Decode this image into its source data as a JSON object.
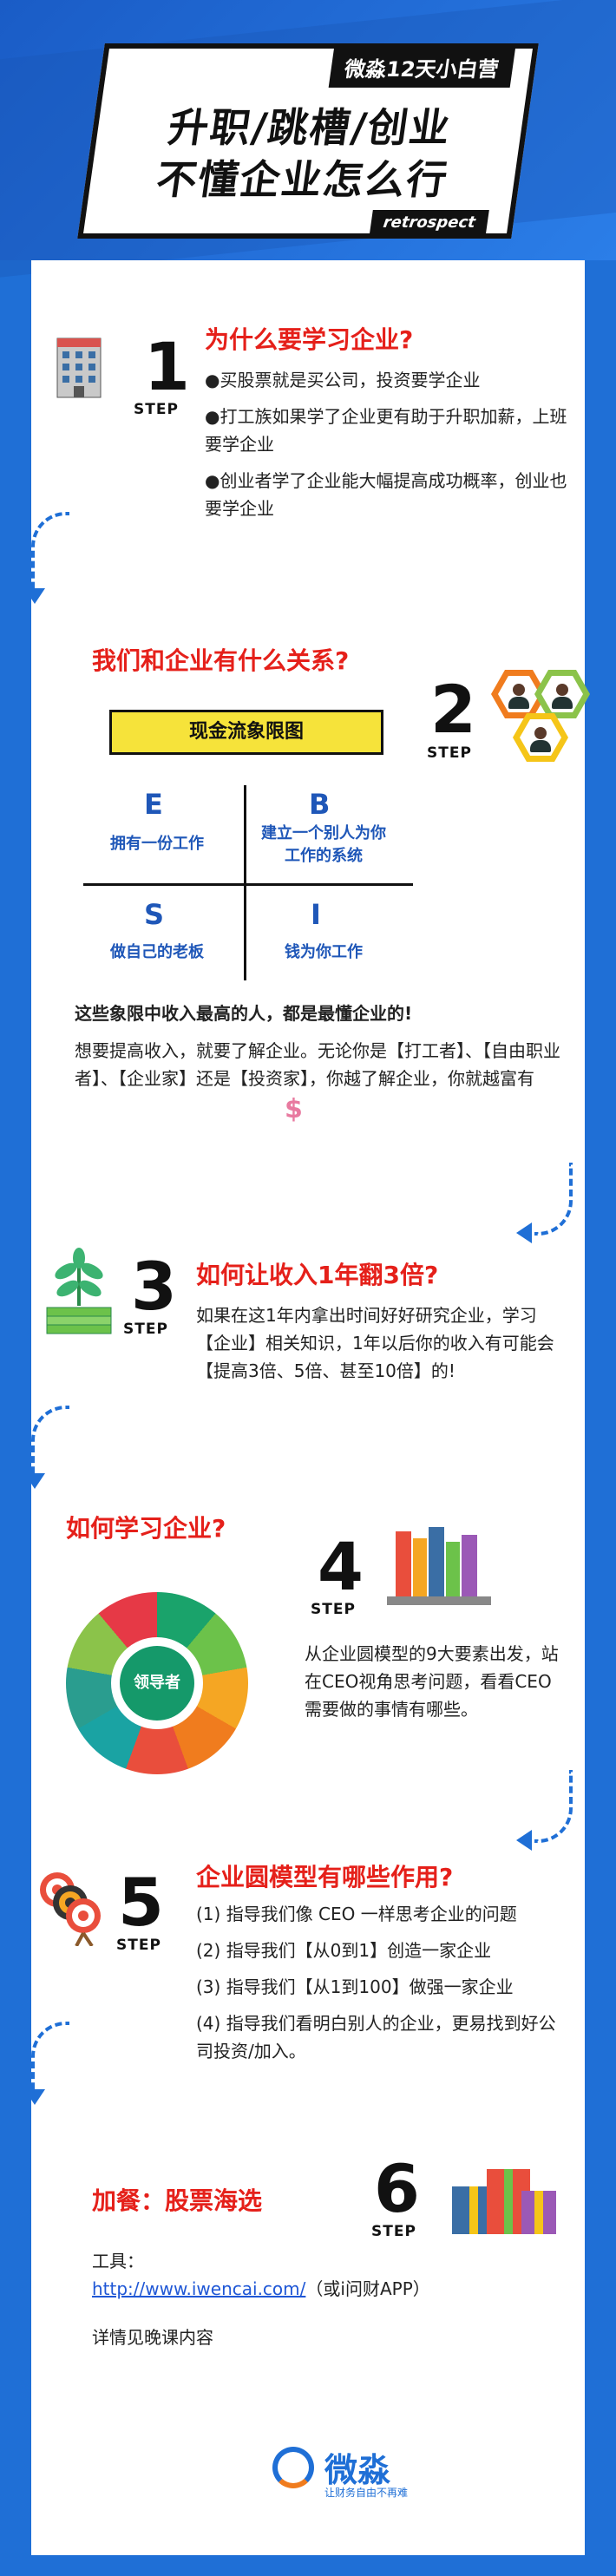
{
  "header": {
    "tag": "微淼12天小白营",
    "title_line1": "升职/跳槽/创业",
    "title_line2": "不懂企业怎么行",
    "subtitle": "retrospect"
  },
  "step_word": "STEP",
  "step1": {
    "num": "1",
    "title": "为什么要学习企业?",
    "bullets": [
      "●买股票就是买公司，投资要学企业",
      "●打工族如果学了企业更有助于升职加薪，上班要学企业",
      "●创业者学了企业能大幅提高成功概率，创业也要学企业"
    ]
  },
  "step2": {
    "num": "2",
    "title": "我们和企业有什么关系?",
    "cashflow_title": "现金流象限图",
    "quadrants": [
      {
        "letter": "E",
        "text": "拥有一份工作"
      },
      {
        "letter": "B",
        "text": "建立一个别人为你工作的系统"
      },
      {
        "letter": "S",
        "text": "做自己的老板"
      },
      {
        "letter": "I",
        "text": "钱为你工作"
      }
    ],
    "bold_note": "这些象限中收入最高的人，都是最懂企业的!",
    "para": "想要提高收入，就要了解企业。无论你是【打工者】、【自由职业者】、【企业家】还是【投资家】，你越了解企业，你就越富有"
  },
  "step3": {
    "num": "3",
    "title": "如何让收入1年翻3倍?",
    "para": "如果在这1年内拿出时间好好研究企业，学习【企业】相关知识，1年以后你的收入有可能会【提高3倍、5倍、甚至10倍】的!"
  },
  "step4": {
    "num": "4",
    "title": "如何学习企业?",
    "wheel_center": "领导者",
    "para": "从企业圆模型的9大要素出发，站在CEO视角思考问题，看看CEO需要做的事情有哪些。"
  },
  "step5": {
    "num": "5",
    "title": "企业圆模型有哪些作用?",
    "items": [
      "(1) 指导我们像 CEO 一样思考企业的问题",
      "(2) 指导我们【从0到1】创造一家企业",
      "(3) 指导我们【从1到100】做强一家企业",
      "(4) 指导我们看明白别人的企业，更易找到好公司投资/加入。"
    ]
  },
  "step6": {
    "num": "6",
    "title": "加餐：股票海选",
    "tool_label": "工具：",
    "link": "http://www.iwencai.com/",
    "link_suffix": "（或i问财APP）",
    "note": "详情见晚课内容"
  },
  "footer": {
    "brand": "微淼",
    "slogan": "让财务自由不再难"
  },
  "colors": {
    "background": "#1f6fd6",
    "title_red": "#e5201a",
    "quad_blue": "#1f57b8",
    "cash_yellow": "#f6e33a"
  }
}
